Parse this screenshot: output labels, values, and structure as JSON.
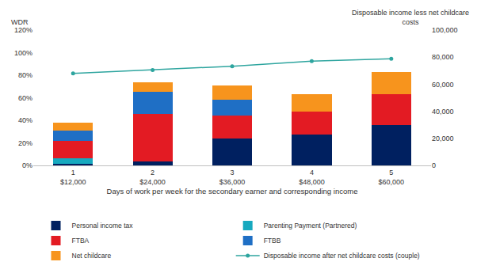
{
  "chart_data": {
    "type": "bar",
    "stacked": true,
    "grid": false,
    "legend": "bottom",
    "xlabel": "Days of work per week for the secondary earner and corresponding income",
    "ylabel": "WDR",
    "y2label": "Disposable income less net childcare\ncosts",
    "categories": [
      "1\n$12,000",
      "2\n$24,000",
      "3\n$36,000",
      "4\n$48,000",
      "5\n$60,000"
    ],
    "ylim": [
      0,
      120
    ],
    "yticks": [
      {
        "value": 0,
        "label": "0%"
      },
      {
        "value": 20,
        "label": "20%"
      },
      {
        "value": 40,
        "label": "40%"
      },
      {
        "value": 60,
        "label": "60%"
      },
      {
        "value": 80,
        "label": "80%"
      },
      {
        "value": 100,
        "label": "100%"
      },
      {
        "value": 120,
        "label": "120%"
      }
    ],
    "y2lim": [
      0,
      100000
    ],
    "y2ticks": [
      0,
      {
        "value": 20000,
        "label": "20,000"
      },
      {
        "value": 40000,
        "label": "40,000"
      },
      {
        "value": 60000,
        "label": "60,000"
      },
      {
        "value": 80000,
        "label": "80,000"
      },
      {
        "value": 100000,
        "label": "100,000"
      }
    ],
    "series": [
      {
        "name": "Personal income tax",
        "color": "#002060",
        "values": [
          1.5,
          3.5,
          24,
          27.5,
          36
        ]
      },
      {
        "name": "Parenting Payment (Partnered)",
        "color": "#17a9bf",
        "values": [
          5,
          0,
          0,
          0,
          0
        ]
      },
      {
        "name": "FTBA",
        "color": "#e31b23",
        "values": [
          15.5,
          42,
          20,
          20,
          27
        ]
      },
      {
        "name": "FTBB",
        "color": "#1f6fc5",
        "values": [
          9,
          20,
          14,
          0,
          0
        ]
      },
      {
        "name": "Net childcare",
        "color": "#f7941d",
        "values": [
          7,
          8.5,
          13,
          16,
          19.5
        ]
      },
      {
        "name": "Disposable income after net childcare costs (couple)",
        "color": "#2ea59f",
        "type": "line",
        "axis": "y2",
        "marker": "circle",
        "line_style": "solid",
        "values": [
          68000,
          70500,
          73300,
          77000,
          78800
        ]
      }
    ]
  }
}
